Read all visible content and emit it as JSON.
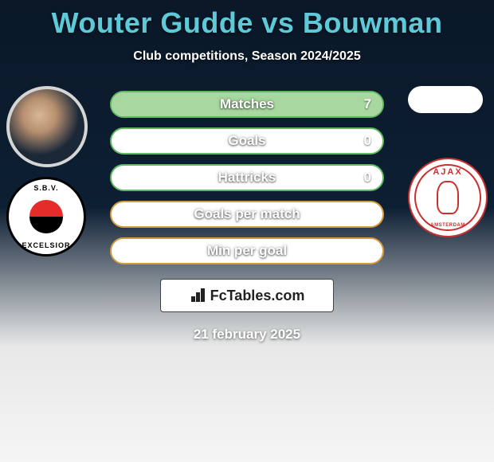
{
  "title": "Wouter Gudde vs Bouwman",
  "subtitle": "Club competitions, Season 2024/2025",
  "colors": {
    "title": "#5fc9d8",
    "row_border_green": "#5fb85f",
    "row_border_amber": "#d89a3e",
    "fill_green": "#a8d8a0",
    "fill_amber": "#e8b86a"
  },
  "player1": {
    "club_top": "S.B.V.",
    "club_bottom": "EXCELSIOR"
  },
  "player2": {
    "club_label": "AJAX",
    "club_sub": "AMSTERDAM"
  },
  "stats": [
    {
      "label": "Matches",
      "p2_value": "7",
      "fill_side": "right",
      "fill_pct": 100,
      "color": "green",
      "show_right_value": true
    },
    {
      "label": "Goals",
      "p2_value": "0",
      "fill_side": "none",
      "fill_pct": 0,
      "color": "green",
      "show_right_value": true
    },
    {
      "label": "Hattricks",
      "p2_value": "0",
      "fill_side": "none",
      "fill_pct": 0,
      "color": "green",
      "show_right_value": true
    },
    {
      "label": "Goals per match",
      "p2_value": "",
      "fill_side": "none",
      "fill_pct": 0,
      "color": "amber",
      "show_right_value": false
    },
    {
      "label": "Min per goal",
      "p2_value": "",
      "fill_side": "none",
      "fill_pct": 0,
      "color": "amber",
      "show_right_value": false
    }
  ],
  "fc_label": "FcTables.com",
  "date": "21 february 2025"
}
